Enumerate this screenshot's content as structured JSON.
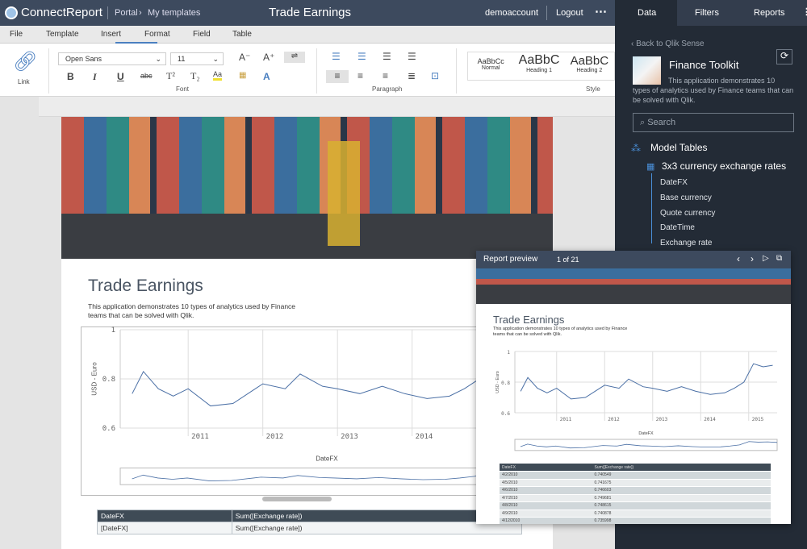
{
  "app": {
    "logo": "ConnectReport",
    "breadcrumb": [
      "Portal",
      "My templates"
    ],
    "title": "Trade Earnings",
    "user": "demoaccount",
    "logout": "Logout",
    "more_icon": "kebab-icon"
  },
  "menu": [
    "File",
    "Template",
    "Insert",
    "Format",
    "Field",
    "Table"
  ],
  "menu_active": "Format",
  "toolbar": {
    "link": "Link",
    "font": "Open Sans",
    "size": "11",
    "font_group": "Font",
    "paragraph_group": "Paragraph",
    "style_group": "Style",
    "styles": [
      {
        "sample": "AaBbCc",
        "name": "Normal"
      },
      {
        "sample": "AaBbC",
        "name": "Heading 1"
      },
      {
        "sample": "AaBbC",
        "name": "Heading 2"
      }
    ],
    "buttons": {
      "bold": "B",
      "italic": "I",
      "underline": "U",
      "strike": "abc",
      "superscript": "T²",
      "subscript": "T₂",
      "color": "A",
      "grow": "A⁻",
      "shrink": "A⁺"
    }
  },
  "document": {
    "title": "Trade Earnings",
    "description": "This application demonstrates 10 types of analytics used by Finance teams that can be solved with Qlik.",
    "table": {
      "headers": [
        "DateFX",
        "Sum([Exchange rate])"
      ],
      "rows": [
        [
          "[DateFX]",
          "Sum([Exchange rate])"
        ]
      ]
    }
  },
  "chart_data": {
    "type": "line",
    "xlabel": "DateFX",
    "ylabel": "USD - Euro",
    "yticks": [
      "0.6",
      "0.8",
      "1"
    ],
    "xticks": [
      "2011",
      "2012",
      "2013",
      "2014",
      "2015"
    ],
    "ylim": [
      0.6,
      1.0
    ],
    "grid": true,
    "series": [
      {
        "x": [
          2010.25,
          2010.4,
          2010.6,
          2010.8,
          2011.0,
          2011.3,
          2011.6,
          2011.9,
          2012.0,
          2012.3,
          2012.5,
          2012.8,
          2013.0,
          2013.3,
          2013.6,
          2013.9,
          2014.2,
          2014.5,
          2014.7,
          2014.9,
          2015.1,
          2015.3,
          2015.5,
          2015.7
        ],
        "y": [
          0.74,
          0.83,
          0.76,
          0.73,
          0.76,
          0.69,
          0.7,
          0.76,
          0.78,
          0.76,
          0.82,
          0.77,
          0.76,
          0.74,
          0.77,
          0.74,
          0.72,
          0.73,
          0.76,
          0.8,
          0.92,
          0.9,
          0.91,
          0.89
        ]
      }
    ]
  },
  "side": {
    "tabs": [
      "Data",
      "Filters",
      "Reports"
    ],
    "back": "Back to Qlik Sense",
    "app_name": "Finance Toolkit",
    "app_desc": "This application demonstrates 10 types of analytics used by Finance teams that can be solved with Qlik.",
    "search_placeholder": "Search",
    "model_tables": "Model Tables",
    "table_name": "3x3 currency exchange rates",
    "fields": [
      "DateFX",
      "Base currency",
      "Quote currency",
      "DateTime",
      "Exchange rate"
    ]
  },
  "preview": {
    "title": "Report preview",
    "page": "1 of 21",
    "headers": [
      "DateFX",
      "Sum([Exchange rate])"
    ],
    "rows": [
      [
        "4/2/2010",
        "0.740549"
      ],
      [
        "4/5/2010",
        "0.741675"
      ],
      [
        "4/6/2010",
        "0.746603"
      ],
      [
        "4/7/2010",
        "0.749681"
      ],
      [
        "4/8/2010",
        "0.748615"
      ],
      [
        "4/9/2010",
        "0.740878"
      ],
      [
        "4/12/2010",
        "0.735998"
      ]
    ]
  }
}
